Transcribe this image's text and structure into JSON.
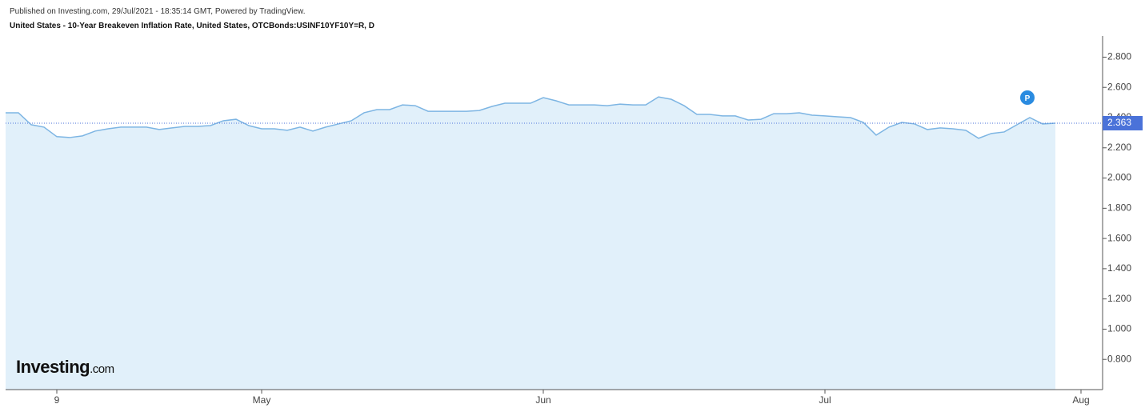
{
  "header": {
    "published": "Published on Investing.com, 29/Jul/2021 - 18:35:14 GMT, Powered by TradingView.",
    "title": "United States - 10-Year Breakeven Inflation Rate, United States, OTCBonds:USINF10YF10Y=R, D"
  },
  "logo": {
    "brand": "Investing",
    "suffix": ".com"
  },
  "marker": "P",
  "chart_data": {
    "type": "area",
    "categories": [
      null,
      null,
      null,
      null,
      "9",
      null,
      null,
      null,
      null,
      null,
      null,
      null,
      null,
      null,
      null,
      null,
      null,
      null,
      null,
      null,
      "May",
      null,
      null,
      null,
      null,
      null,
      null,
      null,
      null,
      null,
      null,
      null,
      null,
      null,
      null,
      null,
      null,
      null,
      null,
      null,
      null,
      null,
      "Jun",
      null,
      null,
      null,
      null,
      null,
      null,
      null,
      null,
      null,
      null,
      null,
      null,
      null,
      null,
      null,
      null,
      null,
      null,
      null,
      null,
      null,
      "Jul",
      null,
      null,
      null,
      null,
      null,
      null,
      null,
      null,
      null,
      null,
      null,
      null,
      null,
      null,
      null,
      null,
      null,
      null,
      null,
      "Aug"
    ],
    "series": [
      {
        "name": "USINF10YF10Y=R",
        "color": "#7db5e3",
        "fill": "#e1f0fa",
        "values": [
          2.432,
          2.432,
          2.353,
          2.337,
          2.274,
          2.268,
          2.279,
          2.311,
          2.326,
          2.337,
          2.337,
          2.337,
          2.321,
          2.332,
          2.342,
          2.342,
          2.347,
          2.379,
          2.389,
          2.347,
          2.326,
          2.326,
          2.316,
          2.337,
          2.311,
          2.337,
          2.358,
          2.379,
          2.432,
          2.453,
          2.453,
          2.484,
          2.479,
          2.442,
          2.442,
          2.442,
          2.442,
          2.447,
          2.474,
          2.495,
          2.495,
          2.495,
          2.532,
          2.511,
          2.484,
          2.484,
          2.484,
          2.479,
          2.489,
          2.484,
          2.484,
          2.537,
          2.521,
          2.479,
          2.421,
          2.421,
          2.411,
          2.411,
          2.384,
          2.389,
          2.426,
          2.426,
          2.432,
          2.416,
          2.411,
          2.405,
          2.4,
          2.368,
          2.284,
          2.337,
          2.368,
          2.358,
          2.321,
          2.332,
          2.326,
          2.316,
          2.263,
          2.295,
          2.305,
          2.353,
          2.4,
          2.358,
          2.363,
          null,
          null
        ]
      }
    ],
    "last_value": 2.363,
    "ylim": [
      0.6,
      2.94
    ],
    "yticks": [
      {
        "value": 0.8,
        "label": "0.800"
      },
      {
        "value": 1.0,
        "label": "1.000"
      },
      {
        "value": 1.2,
        "label": "1.200"
      },
      {
        "value": 1.4,
        "label": "1.400"
      },
      {
        "value": 1.6,
        "label": "1.600"
      },
      {
        "value": 1.8,
        "label": "1.800"
      },
      {
        "value": 2.0,
        "label": "2.000"
      },
      {
        "value": 2.2,
        "label": "2.200"
      },
      {
        "value": 2.4,
        "label": "2.400"
      },
      {
        "value": 2.6,
        "label": "2.600"
      },
      {
        "value": 2.8,
        "label": "2.800"
      }
    ],
    "price_label_color": "#4a72d9"
  }
}
